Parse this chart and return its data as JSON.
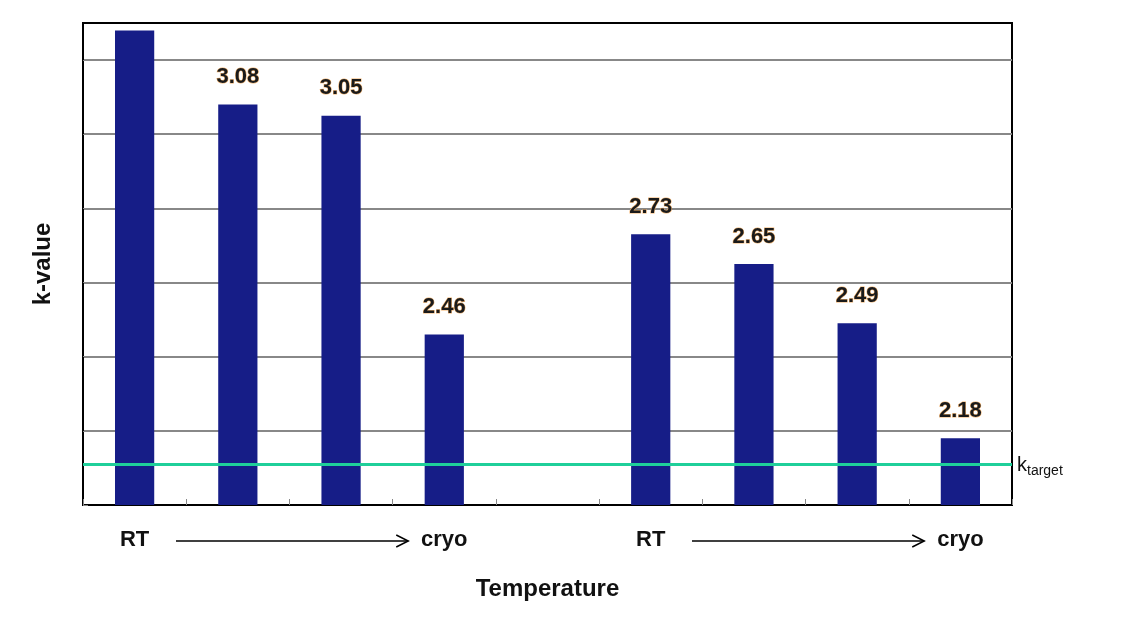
{
  "chart_data": {
    "type": "bar",
    "xlabel": "Temperature",
    "ylabel": "k-value",
    "categories": [
      "RT",
      null,
      null,
      "cryo",
      null,
      "RT",
      null,
      null,
      "cryo"
    ],
    "values": [
      3.28,
      3.08,
      3.05,
      2.46,
      null,
      2.73,
      2.65,
      2.49,
      2.18
    ],
    "value_labels": [
      null,
      "3.08",
      "3.05",
      "2.46",
      null,
      "2.73",
      "2.65",
      "2.49",
      "2.18"
    ],
    "color": "#161d87",
    "ylim": [
      2,
      3.3
    ],
    "yticks": [
      {
        "value": 2,
        "label": null
      },
      {
        "value": 2.2,
        "label": null
      },
      {
        "value": 2.4,
        "label": null
      },
      {
        "value": 2.6,
        "label": null
      },
      {
        "value": 2.8,
        "label": null
      },
      {
        "value": 3,
        "label": null
      },
      {
        "value": 3.2,
        "label": null
      }
    ],
    "tick_labels": "x",
    "grid": "y",
    "ref_lines": [
      {
        "axis": "y",
        "value": 2.11,
        "label": "k$_{target}$",
        "color": "#1fcf9a",
        "line_style": "solid"
      }
    ]
  }
}
